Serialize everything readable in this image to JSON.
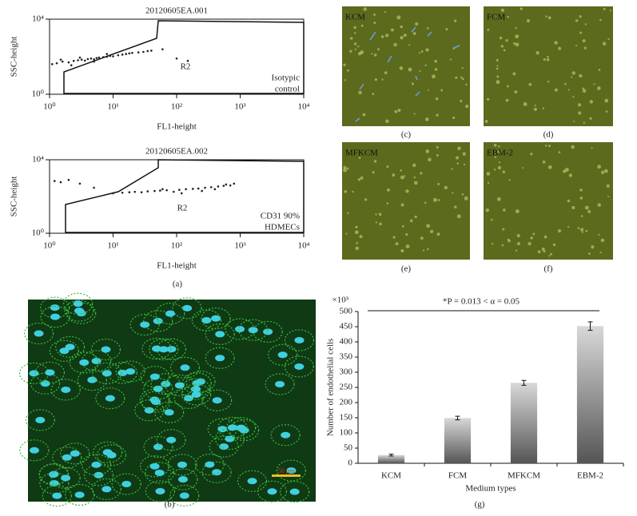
{
  "panel_labels": [
    "(a)",
    "(b)",
    "(c)",
    "(d)",
    "(e)",
    "(f)",
    "(g)"
  ],
  "images": [
    {
      "label": "KCM"
    },
    {
      "label": "FCM"
    },
    {
      "label": "MFKCM"
    },
    {
      "label": "EBM-2"
    }
  ],
  "scale_bar": "50 μm",
  "chart_data": [
    {
      "type": "scatter",
      "title": "20120605EA.001",
      "x_label": "FL1-height",
      "y_label": "SSC-height",
      "annotations": [
        "R2",
        "Isotypic",
        "control"
      ],
      "log_x": true,
      "log_y": true,
      "color": "#222222",
      "xlim": [
        1,
        10000
      ],
      "ylim": [
        1,
        10000
      ],
      "xticks": [
        {
          "value": 1,
          "label": "10⁰"
        },
        {
          "value": 10,
          "label": "10¹"
        },
        {
          "value": 100,
          "label": "10²"
        },
        {
          "value": 1000,
          "label": "10³"
        },
        {
          "value": 10000,
          "label": "10⁴"
        }
      ],
      "yticks": [
        {
          "value": 1,
          "label": "10⁰"
        },
        {
          "value": 10000,
          "label": "10⁴"
        }
      ],
      "x": [
        1.3,
        1.6,
        2,
        2.4,
        2.8,
        3.2,
        3.6,
        4,
        4.5,
        5,
        5.5,
        6,
        7,
        8,
        9,
        10,
        12,
        14,
        16,
        18,
        20,
        25,
        30,
        35,
        40,
        1.1,
        1.5,
        2.2,
        3,
        5,
        8,
        60,
        100,
        150
      ],
      "y": [
        45,
        55,
        50,
        60,
        65,
        70,
        62,
        75,
        80,
        72,
        85,
        90,
        95,
        100,
        110,
        105,
        120,
        130,
        140,
        150,
        160,
        170,
        180,
        200,
        210,
        40,
        70,
        35,
        90,
        55,
        140,
        250,
        80,
        60
      ]
    },
    {
      "type": "scatter",
      "title": "20120605EA.002",
      "x_label": "FL1-height",
      "y_label": "SSC-height",
      "annotations": [
        "R2",
        "CD31 90%",
        "HDMECs"
      ],
      "log_x": true,
      "log_y": true,
      "color": "#222222",
      "xlim": [
        1,
        10000
      ],
      "ylim": [
        1,
        10000
      ],
      "xticks": [
        {
          "value": 1,
          "label": "10⁰"
        },
        {
          "value": 10,
          "label": "10¹"
        },
        {
          "value": 100,
          "label": "10²"
        },
        {
          "value": 1000,
          "label": "10³"
        },
        {
          "value": 10000,
          "label": "10⁴"
        }
      ],
      "yticks": [
        {
          "value": 1,
          "label": "10⁰"
        },
        {
          "value": 10000,
          "label": "10⁴"
        }
      ],
      "x": [
        10,
        14,
        18,
        22,
        28,
        35,
        45,
        55,
        70,
        90,
        110,
        140,
        180,
        220,
        280,
        350,
        450,
        550,
        700,
        3,
        5,
        1.5,
        2,
        60,
        120,
        250,
        400,
        600,
        800,
        1.2
      ],
      "y": [
        150,
        160,
        170,
        180,
        170,
        190,
        200,
        210,
        220,
        180,
        230,
        250,
        260,
        270,
        300,
        320,
        350,
        380,
        400,
        500,
        300,
        600,
        800,
        250,
        150,
        200,
        250,
        450,
        500,
        700
      ]
    },
    {
      "type": "bar",
      "y_label": "Number of endothelial cells",
      "x_label": "Medium types",
      "multiplier": "×10³",
      "annotation": "*P = 0.013 < α = 0.05",
      "categories": [
        "KCM",
        "FCM",
        "MFKCM",
        "EBM-2"
      ],
      "values": [
        27,
        149,
        265,
        452
      ],
      "errors": [
        3,
        6,
        8,
        14
      ],
      "ylim": [
        0,
        500
      ],
      "yticks": [
        0,
        50,
        100,
        150,
        200,
        250,
        300,
        350,
        400,
        450,
        500
      ]
    }
  ]
}
